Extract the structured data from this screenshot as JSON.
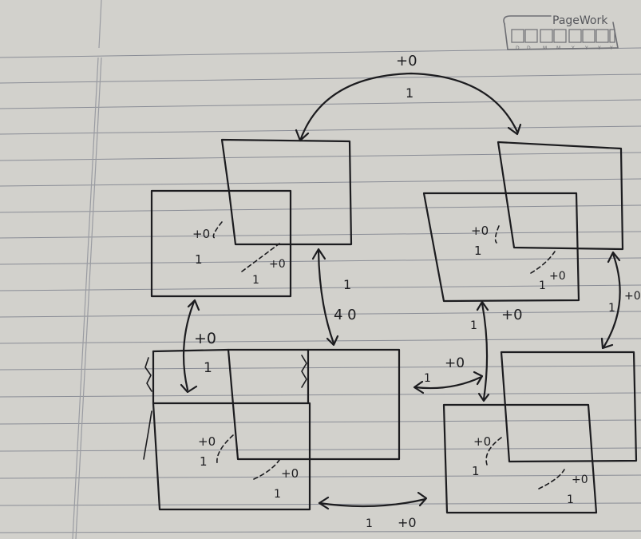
{
  "header": {
    "brand": "PageWork",
    "date_slots": [
      "D",
      "D",
      "M",
      "M",
      "Y",
      "Y",
      "Y",
      "Y"
    ]
  },
  "colors": {
    "paper": "#d2d1cc",
    "ruling": "#8a8d96",
    "ink": "#1c1c1f"
  },
  "diagram": {
    "nodes": [
      {
        "id": "top-left",
        "edge_labels": {
          "self_upper": "+0",
          "self_upper_bottom": "1",
          "self_lower": "+0",
          "self_lower_bottom": "1"
        }
      },
      {
        "id": "top-right",
        "edge_labels": {
          "self_upper": "+0",
          "self_upper_bottom": "1",
          "self_lower": "+0",
          "self_lower_bottom": "1"
        }
      },
      {
        "id": "bottom-left",
        "edge_labels": {
          "self_upper": "+0",
          "self_upper_bottom": "1",
          "self_lower": "+0",
          "self_lower_bottom": "1"
        }
      },
      {
        "id": "bottom-right",
        "edge_labels": {
          "self_upper": "+0",
          "self_upper_bottom": "1",
          "self_lower": "+0",
          "self_lower_bottom": "1"
        }
      }
    ],
    "edges": [
      {
        "id": "top-arc",
        "label_top": "+0",
        "label_bottom": "1"
      },
      {
        "id": "left-vertical",
        "label_top": "+0",
        "label_bottom": "1"
      },
      {
        "id": "center-diagonal",
        "label_top": "1",
        "label_bottom": "4 0"
      },
      {
        "id": "right-vertical",
        "label_top": "1",
        "label_bottom": "+0"
      },
      {
        "id": "far-right-diagonal",
        "label_top": "1",
        "label_bottom": "+0"
      },
      {
        "id": "middle-horizontal",
        "label_top": "1",
        "label_bottom": "+0"
      },
      {
        "id": "bottom-horizontal",
        "label_top": "1",
        "label_bottom": "+0"
      }
    ]
  }
}
